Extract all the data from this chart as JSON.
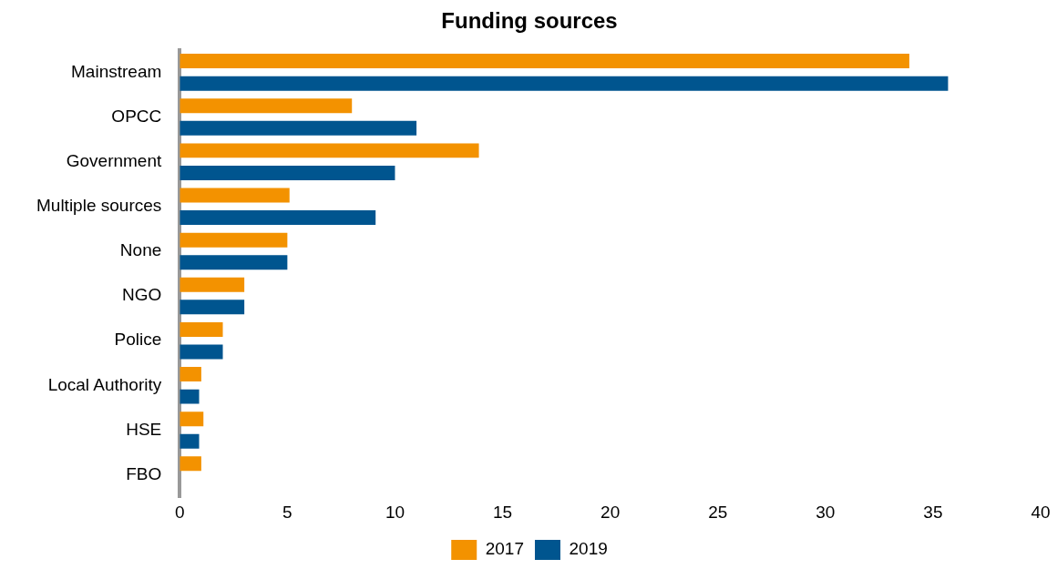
{
  "chart_data": {
    "type": "bar",
    "orientation": "horizontal",
    "title": "Funding sources",
    "categories": [
      "Mainstream",
      "OPCC",
      "Government",
      "Multiple sources",
      "None",
      "NGO",
      "Police",
      "Local Authority",
      "HSE",
      "FBO"
    ],
    "series": [
      {
        "name": "2017",
        "color": "#f39200",
        "values": [
          33.9,
          8,
          13.9,
          5.1,
          5,
          3,
          2,
          1,
          1.1,
          1
        ]
      },
      {
        "name": "2019",
        "color": "#00558f",
        "values": [
          35.7,
          11,
          10,
          9.1,
          5,
          3,
          2,
          0.9,
          0.9,
          null
        ]
      }
    ],
    "xlim": [
      0,
      40
    ],
    "xticks": [
      0,
      5,
      10,
      15,
      20,
      25,
      30,
      35,
      40
    ],
    "grid": false,
    "legend": "bottom"
  }
}
